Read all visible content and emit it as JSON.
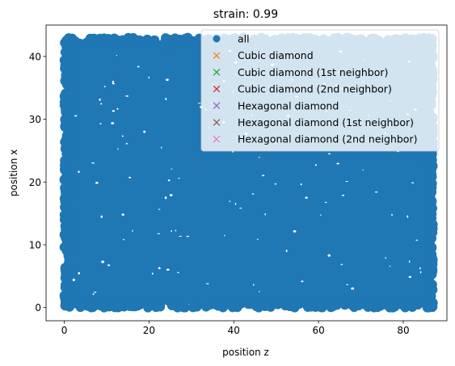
{
  "chart_data": {
    "type": "scatter",
    "title": "strain: 0.99",
    "xlabel": "position z",
    "ylabel": "position x",
    "xlim": [
      -4.3,
      90.3
    ],
    "ylim": [
      -2.1,
      45.0
    ],
    "xticks": [
      0,
      20,
      40,
      60,
      80
    ],
    "yticks": [
      0,
      10,
      20,
      30,
      40
    ],
    "point_cloud": {
      "description_series": "all",
      "x_range": [
        0,
        87
      ],
      "y_range": [
        0,
        43
      ],
      "approx_points": 4200
    },
    "series": [
      {
        "name": "all",
        "marker": "circle",
        "color": "#1f77b4"
      },
      {
        "name": "Cubic diamond",
        "marker": "x",
        "color": "#ff7f0e",
        "values": []
      },
      {
        "name": "Cubic diamond (1st neighbor)",
        "marker": "x",
        "color": "#2ca02c",
        "values": []
      },
      {
        "name": "Cubic diamond (2nd neighbor)",
        "marker": "x",
        "color": "#d62728",
        "values": []
      },
      {
        "name": "Hexagonal diamond",
        "marker": "x",
        "color": "#9467bd",
        "values": []
      },
      {
        "name": "Hexagonal diamond (1st neighbor)",
        "marker": "x",
        "color": "#8c564b",
        "values": []
      },
      {
        "name": "Hexagonal diamond (2nd neighbor)",
        "marker": "x",
        "color": "#e377c2",
        "values": []
      }
    ],
    "legend_position": "top-right",
    "grid": false
  }
}
